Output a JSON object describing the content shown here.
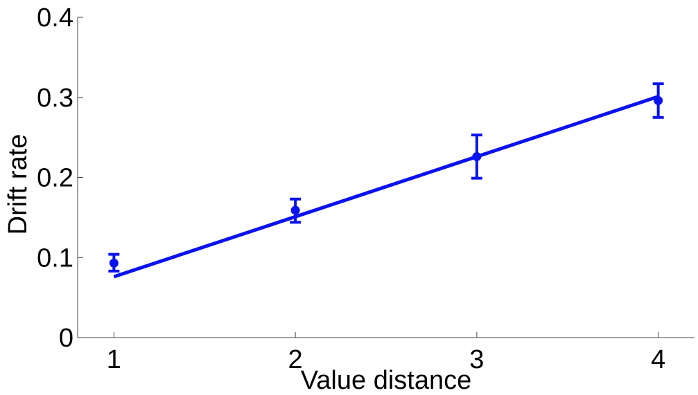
{
  "chart_data": {
    "type": "scatter",
    "xlabel": "Value distance",
    "ylabel": "Drift rate",
    "xlim": [
      0.8,
      4.2
    ],
    "ylim": [
      0,
      0.4
    ],
    "xticks": [
      1,
      2,
      3,
      4
    ],
    "yticks": [
      0,
      0.1,
      0.2,
      0.3,
      0.4
    ],
    "grid": false,
    "series": [
      {
        "kind": "points_with_error_bars",
        "color": "#0a12ee",
        "points": [
          {
            "x": 1,
            "y": 0.093,
            "err_low": 0.083,
            "err_high": 0.104
          },
          {
            "x": 2,
            "y": 0.159,
            "err_low": 0.144,
            "err_high": 0.173
          },
          {
            "x": 3,
            "y": 0.226,
            "err_low": 0.199,
            "err_high": 0.253
          },
          {
            "x": 4,
            "y": 0.296,
            "err_low": 0.275,
            "err_high": 0.317
          }
        ]
      },
      {
        "kind": "fit_line",
        "color": "#0a12ee",
        "x": [
          1,
          4
        ],
        "y": [
          0.076,
          0.301
        ]
      }
    ]
  }
}
